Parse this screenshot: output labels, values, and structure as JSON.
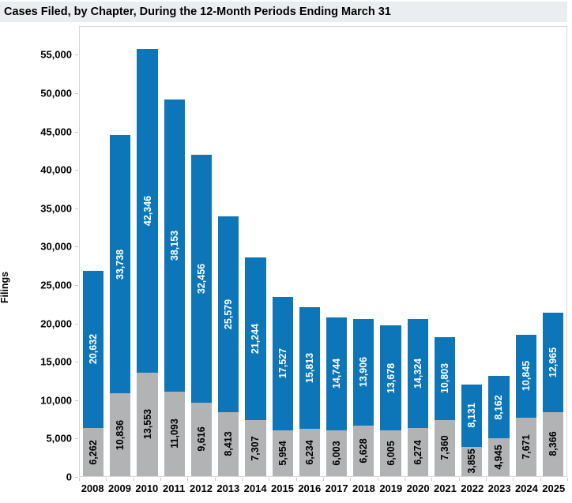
{
  "title_bar": {
    "title": "Cases Filed, by Chapter, During the 12-Month Periods Ending March 31"
  },
  "colors": {
    "title_strip_bg": "#ebeef1",
    "plot_border": "#d7d7d7",
    "blue_segment": "#0d76b8",
    "gray_segment": "#b1b3b5",
    "blue_label_text": "#ffffff",
    "gray_label_text": "#000000",
    "axis_text": "#000000"
  },
  "chart_data": {
    "type": "bar",
    "subtype": "stacked-vertical",
    "title": "Cases Filed, by Chapter, During the 12-Month Periods Ending March 31",
    "xlabel": "",
    "ylabel": "Filings",
    "categories": [
      "2008",
      "2009",
      "2010",
      "2011",
      "2012",
      "2013",
      "2014",
      "2015",
      "2016",
      "2017",
      "2018",
      "2019",
      "2020",
      "2021",
      "2022",
      "2023",
      "2024",
      "2025"
    ],
    "series": [
      {
        "name": "bottom-gray-segment",
        "color": "#b1b3b5",
        "label_color": "#000000",
        "values": [
          6262,
          10836,
          13553,
          11093,
          9616,
          8413,
          7307,
          5954,
          6234,
          6003,
          6628,
          6005,
          6274,
          7360,
          3855,
          4945,
          7671,
          8366
        ]
      },
      {
        "name": "top-blue-segment",
        "color": "#0d76b8",
        "label_color": "#ffffff",
        "values": [
          20632,
          33738,
          42346,
          38153,
          32456,
          25579,
          21244,
          17527,
          15813,
          14744,
          13906,
          13678,
          14324,
          10803,
          8131,
          8162,
          10845,
          12965
        ]
      }
    ],
    "ylim": [
      0,
      58745
    ],
    "yticks": [
      0,
      5000,
      10000,
      15000,
      20000,
      25000,
      30000,
      35000,
      40000,
      45000,
      50000,
      55000
    ],
    "grid": "off",
    "legend": "none",
    "bar_labels": "rotated-90-inside-segments"
  }
}
